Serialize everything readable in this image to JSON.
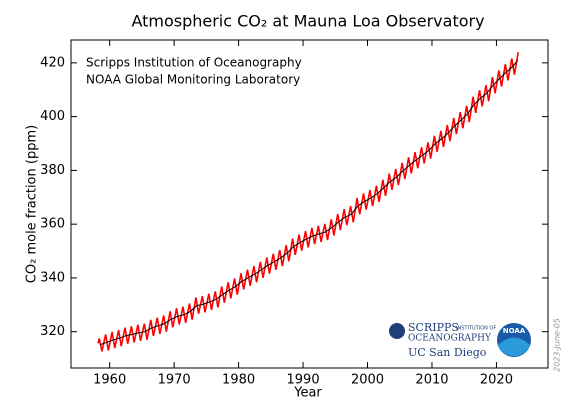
{
  "chart_data": {
    "type": "line",
    "title": "Atmospheric CO₂ at Mauna Loa Observatory",
    "xlabel": "Year",
    "ylabel": "CO₂ mole fraction (ppm)",
    "annotations": [
      "Scripps Institution of Oceanography",
      "NOAA Global Monitoring Laboratory"
    ],
    "date_note": "2023-June-05",
    "logos": {
      "scripps": "SCRIPPS",
      "scripps_small": "INSTITUTION OF",
      "scripps_sub": "OCEANOGRAPHY",
      "ucsd": "UC San Diego",
      "noaa": "NOAA"
    },
    "xlim": [
      1954,
      2028
    ],
    "ylim": [
      306.5,
      428.5
    ],
    "xticks": [
      1960,
      1970,
      1980,
      1990,
      2000,
      2010,
      2020
    ],
    "yticks": [
      320,
      340,
      360,
      380,
      400,
      420
    ],
    "series": [
      {
        "color": "#ff0000",
        "x": [
          1958.21,
          1958.38,
          1958.79,
          1959.38,
          1959.79,
          1960.38,
          1960.79,
          1961.38,
          1961.79,
          1962.38,
          1962.79,
          1963.38,
          1963.79,
          1964.38,
          1964.79,
          1965.38,
          1965.79,
          1966.38,
          1966.79,
          1967.38,
          1967.79,
          1968.38,
          1968.79,
          1969.38,
          1969.79,
          1970.38,
          1970.79,
          1971.38,
          1971.79,
          1972.38,
          1972.79,
          1973.38,
          1973.79,
          1974.38,
          1974.79,
          1975.38,
          1975.79,
          1976.38,
          1976.79,
          1977.38,
          1977.79,
          1978.38,
          1978.79,
          1979.38,
          1979.79,
          1980.38,
          1980.79,
          1981.38,
          1981.79,
          1982.38,
          1982.79,
          1983.38,
          1983.79,
          1984.38,
          1984.79,
          1985.38,
          1985.79,
          1986.38,
          1986.79,
          1987.38,
          1987.79,
          1988.38,
          1988.79,
          1989.38,
          1989.79,
          1990.38,
          1990.79,
          1991.38,
          1991.79,
          1992.38,
          1992.79,
          1993.38,
          1993.79,
          1994.38,
          1994.79,
          1995.38,
          1995.79,
          1996.38,
          1996.79,
          1997.38,
          1997.79,
          1998.38,
          1998.79,
          1999.38,
          1999.79,
          2000.38,
          2000.79,
          2001.38,
          2001.79,
          2002.38,
          2002.79,
          2003.38,
          2003.79,
          2004.38,
          2004.79,
          2005.38,
          2005.79,
          2006.38,
          2006.79,
          2007.38,
          2007.79,
          2008.38,
          2008.79,
          2009.38,
          2009.79,
          2010.38,
          2010.79,
          2011.38,
          2011.79,
          2012.38,
          2012.79,
          2013.38,
          2013.79,
          2014.38,
          2014.79,
          2015.38,
          2015.79,
          2016.38,
          2016.79,
          2017.38,
          2017.79,
          2018.38,
          2018.79,
          2019.38,
          2019.79,
          2020.38,
          2020.79,
          2021.38,
          2021.79,
          2022.38,
          2022.79,
          2023.38
        ],
        "values": [
          315.7,
          317.5,
          312.7,
          319.0,
          313.0,
          319.9,
          313.9,
          320.6,
          314.6,
          321.5,
          315.5,
          322.0,
          316.0,
          322.6,
          316.6,
          323.0,
          317.0,
          324.4,
          318.4,
          325.2,
          319.2,
          326.0,
          320.0,
          327.6,
          321.6,
          328.7,
          322.7,
          329.3,
          323.3,
          330.5,
          324.5,
          332.7,
          326.7,
          333.2,
          327.2,
          334.1,
          328.1,
          335.0,
          329.0,
          336.8,
          330.8,
          338.4,
          332.4,
          339.8,
          333.8,
          341.7,
          335.7,
          343.1,
          337.1,
          344.4,
          338.4,
          346.0,
          340.0,
          347.6,
          341.6,
          349.0,
          343.0,
          350.4,
          344.4,
          352.2,
          346.2,
          354.6,
          348.6,
          356.1,
          350.1,
          357.4,
          351.4,
          358.6,
          352.6,
          359.4,
          353.4,
          360.1,
          354.1,
          361.8,
          355.8,
          363.8,
          357.8,
          365.6,
          359.6,
          366.7,
          360.7,
          369.7,
          363.7,
          371.4,
          365.4,
          372.7,
          366.7,
          374.3,
          368.3,
          376.5,
          370.5,
          378.8,
          372.8,
          380.5,
          374.5,
          382.8,
          376.8,
          384.9,
          378.9,
          386.8,
          380.8,
          388.6,
          382.6,
          390.4,
          384.4,
          392.9,
          386.9,
          394.7,
          388.7,
          396.9,
          390.9,
          399.5,
          393.5,
          401.7,
          395.7,
          404.0,
          398.0,
          407.4,
          401.4,
          409.8,
          403.8,
          411.7,
          405.7,
          414.7,
          408.7,
          417.2,
          411.2,
          419.5,
          413.5,
          421.6,
          415.6,
          424.0
        ]
      },
      {
        "color": "#000000",
        "x": [
          1958.5,
          1959.5,
          1960.5,
          1961.5,
          1962.5,
          1963.5,
          1964.5,
          1965.5,
          1966.5,
          1967.5,
          1968.5,
          1969.5,
          1970.5,
          1971.5,
          1972.5,
          1973.5,
          1974.5,
          1975.5,
          1976.5,
          1977.5,
          1978.5,
          1979.5,
          1980.5,
          1981.5,
          1982.5,
          1983.5,
          1984.5,
          1985.5,
          1986.5,
          1987.5,
          1988.5,
          1989.5,
          1990.5,
          1991.5,
          1992.5,
          1993.5,
          1994.5,
          1995.5,
          1996.5,
          1997.5,
          1998.5,
          1999.5,
          2000.5,
          2001.5,
          2002.5,
          2003.5,
          2004.5,
          2005.5,
          2006.5,
          2007.5,
          2008.5,
          2009.5,
          2010.5,
          2011.5,
          2012.5,
          2013.5,
          2014.5,
          2015.5,
          2016.5,
          2017.5,
          2018.5,
          2019.5,
          2020.5,
          2021.5,
          2022.5,
          2023.3
        ],
        "values": [
          315.2,
          316.0,
          316.9,
          317.6,
          318.5,
          319.0,
          319.6,
          320.0,
          321.4,
          322.2,
          323.0,
          324.6,
          325.7,
          326.3,
          327.5,
          329.7,
          330.2,
          331.1,
          332.0,
          333.8,
          335.4,
          336.8,
          338.7,
          340.1,
          341.4,
          343.0,
          344.6,
          346.0,
          347.4,
          349.2,
          351.6,
          353.1,
          354.4,
          355.6,
          356.4,
          357.1,
          358.8,
          360.8,
          362.6,
          363.7,
          366.7,
          368.4,
          369.7,
          371.3,
          373.5,
          375.8,
          377.5,
          379.8,
          381.9,
          383.8,
          385.6,
          387.4,
          389.9,
          391.7,
          393.9,
          396.5,
          398.7,
          401.0,
          404.4,
          406.8,
          408.7,
          411.7,
          414.2,
          416.5,
          418.6,
          420.9
        ]
      }
    ]
  }
}
